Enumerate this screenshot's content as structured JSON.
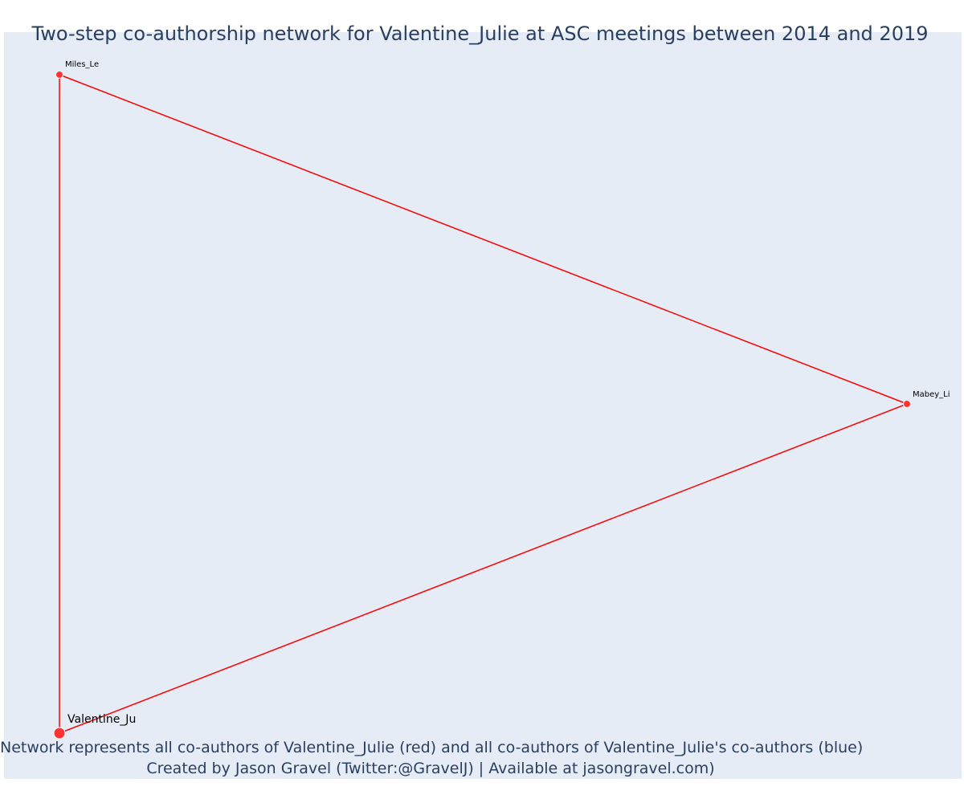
{
  "title": "Two-step co-authorship network for Valentine_Julie at ASC meetings between 2014 and 2019",
  "footer": {
    "line1": "Network represents all co-authors of Valentine_Julie (red) and all co-authors of Valentine_Julie's co-authors (blue)",
    "line2": "Created by Jason Gravel (Twitter:@GravelJ) | Available at jasongravel.com)"
  },
  "colors": {
    "plot_background": "#e5ecf6",
    "edge": "#ff0000",
    "node": "#ff3333",
    "text": "#2a3f5f"
  },
  "nodes": [
    {
      "id": "miles",
      "label": "Miles_Le",
      "role": "co-author"
    },
    {
      "id": "mabey",
      "label": "Mabey_Li",
      "role": "co-author"
    },
    {
      "id": "valentine",
      "label": "Valentine_Ju",
      "role": "focal"
    }
  ],
  "edges": [
    {
      "from": "miles",
      "to": "mabey"
    },
    {
      "from": "mabey",
      "to": "valentine"
    },
    {
      "from": "valentine",
      "to": "miles"
    }
  ]
}
